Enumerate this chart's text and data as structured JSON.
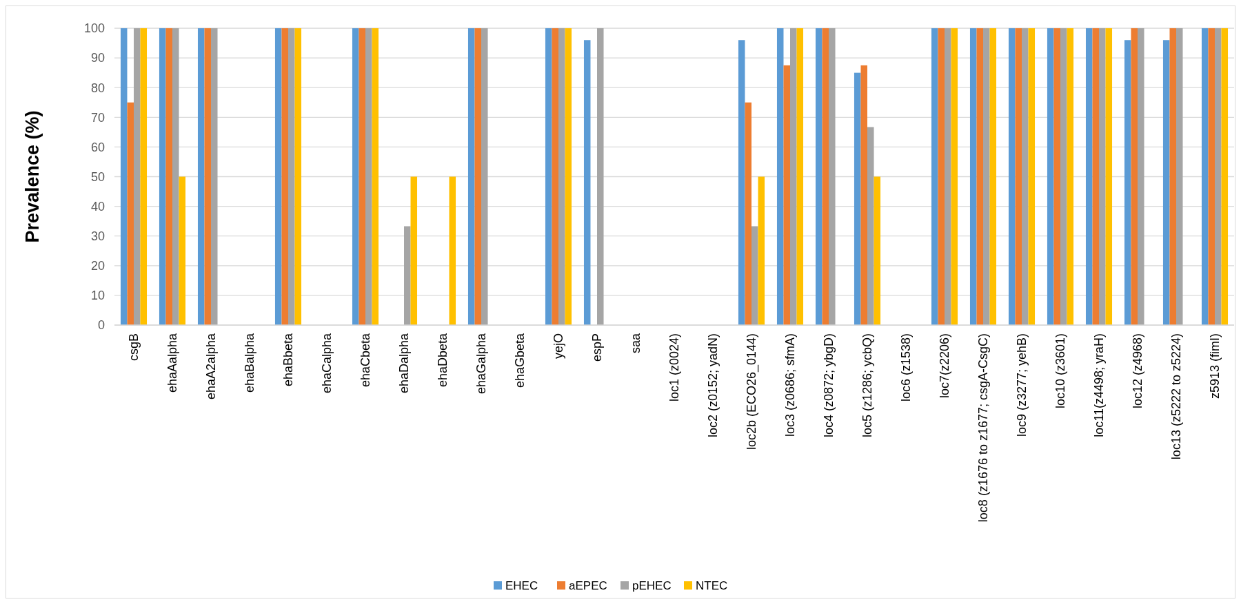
{
  "chart_data": {
    "type": "bar",
    "ylabel": "Prevalence (%)",
    "categories": [
      "csgB",
      "ehaAalpha",
      "ehaA2alpha",
      "ehaBalpha",
      "ehaBbeta",
      "ehaCalpha",
      "ehaCbeta",
      "ehaDalpha",
      "ehaDbeta",
      "ehaGalpha",
      "ehaGbeta",
      "yejO",
      "espP",
      "saa",
      "loc1 (z0024)",
      "loc2 (z0152; yadN)",
      "loc2b (ECO26_0144)",
      "loc3 (z0686; sfmA)",
      "loc4 (z0872; ybgD)",
      "loc5 (z1286; ycbQ)",
      "loc6 (z1538)",
      "loc7(z2206)",
      "loc8 (z1676 to z1677; csgA-CsgC)",
      "loc9 (z3277; yehB)",
      "loc10 (z3601)",
      "loc11(z4498; yraH)",
      "loc12 (z4968)",
      "loc13 (z5222 to z5224)",
      "z5913 (fimI)"
    ],
    "series": [
      {
        "name": "EHEC",
        "color": "#5b9bd5",
        "values": [
          100,
          100,
          100,
          0,
          100,
          0,
          100,
          0,
          0,
          100,
          0,
          100,
          96,
          0,
          0,
          0,
          96,
          100,
          100,
          85,
          0,
          100,
          100,
          100,
          100,
          100,
          96,
          96,
          100
        ]
      },
      {
        "name": "aEPEC",
        "color": "#ed7d31",
        "values": [
          75,
          100,
          100,
          0,
          100,
          0,
          100,
          0,
          0,
          100,
          0,
          100,
          0,
          0,
          0,
          0,
          75,
          87.5,
          100,
          87.5,
          0,
          100,
          100,
          100,
          100,
          100,
          100,
          100,
          100
        ]
      },
      {
        "name": "pEHEC",
        "color": "#a5a5a5",
        "values": [
          100,
          100,
          100,
          0,
          100,
          0,
          100,
          33.3,
          0,
          100,
          0,
          100,
          100,
          0,
          0,
          0,
          33.3,
          100,
          100,
          66.7,
          0,
          100,
          100,
          100,
          100,
          100,
          100,
          100,
          100
        ]
      },
      {
        "name": "NTEC",
        "color": "#ffc000",
        "values": [
          100,
          50,
          0,
          0,
          100,
          0,
          100,
          50,
          50,
          0,
          0,
          100,
          0,
          0,
          0,
          0,
          50,
          100,
          0,
          50,
          0,
          100,
          100,
          100,
          100,
          100,
          0,
          0,
          100
        ]
      }
    ],
    "ylim": [
      0,
      100
    ],
    "yticks": [
      0,
      10,
      20,
      30,
      40,
      50,
      60,
      70,
      80,
      90,
      100
    ],
    "grid": "y",
    "legend": "bottom"
  }
}
